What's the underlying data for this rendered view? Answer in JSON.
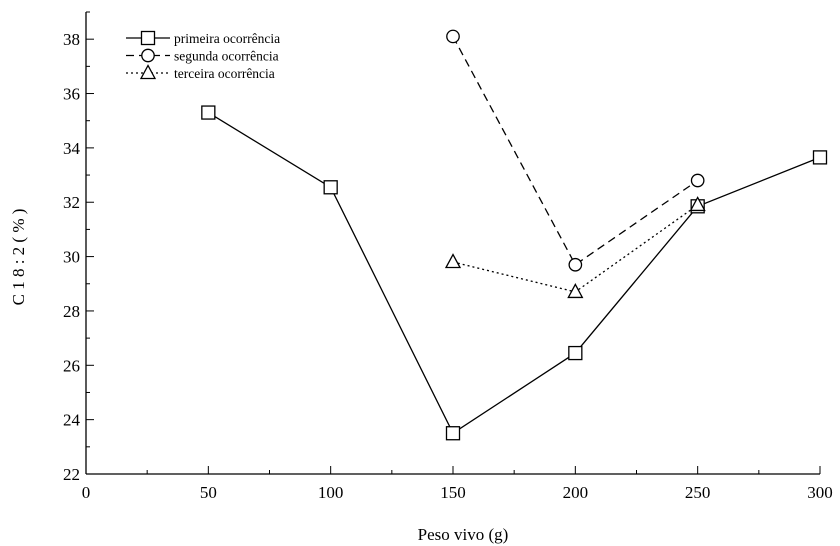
{
  "chart_data": {
    "type": "line",
    "xlabel": "Peso vivo (g)",
    "ylabel": "C 1 8 : 2   ( % )",
    "xlim": [
      0,
      300
    ],
    "ylim": [
      22,
      39
    ],
    "x_ticks": [
      0,
      50,
      100,
      150,
      200,
      250,
      300
    ],
    "y_ticks": [
      22,
      24,
      26,
      28,
      30,
      32,
      34,
      36,
      38
    ],
    "grid": false,
    "legend_position": "top-left",
    "series": [
      {
        "name": "primeira ocorrência",
        "marker": "square",
        "line_style": "solid",
        "x": [
          50,
          100,
          150,
          200,
          250,
          300
        ],
        "y": [
          35.3,
          32.55,
          23.5,
          26.45,
          31.85,
          33.65
        ]
      },
      {
        "name": "segunda ocorrência",
        "marker": "circle",
        "line_style": "dashed",
        "x": [
          150,
          200,
          250
        ],
        "y": [
          38.1,
          29.7,
          32.8
        ]
      },
      {
        "name": "terceira ocorrência",
        "marker": "triangle",
        "line_style": "dotted",
        "x": [
          150,
          200,
          250
        ],
        "y": [
          29.8,
          28.7,
          31.9
        ]
      }
    ]
  }
}
